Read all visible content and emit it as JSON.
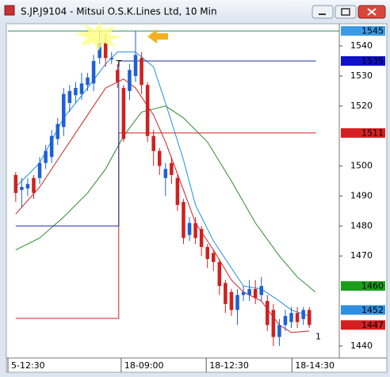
{
  "window": {
    "title": "S.JP.J9104 - Mitsui O.S.K.Lines Ltd, 10 Min"
  },
  "chart_data": {
    "type": "candlestick",
    "up_color": "#1f5fd6",
    "down_color": "#d02020",
    "open": [
      1497,
      1492,
      1492.5,
      1496,
      1496,
      1501,
      1503,
      1509,
      1513,
      1521,
      1523.6,
      1524,
      1527,
      1527.5,
      1536,
      1541,
      1535.5,
      1532,
      1526,
      1525,
      1530,
      1536,
      1527,
      1510,
      1505,
      1496,
      1501,
      1496,
      1488,
      1477,
      1481,
      1479,
      1473,
      1471,
      1468,
      1461,
      1458,
      1452,
      1457,
      1457,
      1459,
      1457,
      1455,
      1452,
      1443,
      1447,
      1448,
      1451,
      1449,
      1452
    ],
    "high": [
      1498,
      1496,
      1496,
      1497,
      1503,
      1507,
      1512,
      1516,
      1526,
      1527,
      1528,
      1531,
      1531,
      1537,
      1545,
      1544,
      1538,
      1534,
      1527,
      1534,
      1545,
      1538,
      1528,
      1512,
      1506,
      1501,
      1503,
      1497,
      1489,
      1483,
      1483,
      1480,
      1474,
      1472,
      1469,
      1462,
      1459,
      1459,
      1460,
      1462,
      1462,
      1463,
      1457,
      1454,
      1449,
      1452,
      1453,
      1453,
      1453,
      1453
    ],
    "low": [
      1488,
      1486,
      1490,
      1489,
      1494,
      1499,
      1501,
      1507,
      1510,
      1518,
      1521,
      1522,
      1525,
      1525,
      1534,
      1533,
      1534,
      1526,
      1508,
      1522,
      1528,
      1524,
      1508,
      1500,
      1497,
      1490,
      1494,
      1485,
      1474,
      1475,
      1474,
      1470,
      1466,
      1465,
      1457,
      1451,
      1450,
      1447,
      1455,
      1455,
      1454,
      1455,
      1445,
      1440,
      1440,
      1445,
      1446,
      1446,
      1447,
      1446
    ],
    "close": [
      1491,
      1493,
      1494,
      1491,
      1501,
      1505,
      1510,
      1514,
      1524,
      1525,
      1526,
      1527.5,
      1529.5,
      1535,
      1541,
      1536,
      1536,
      1528,
      1509,
      1532,
      1537,
      1527,
      1510,
      1505,
      1500,
      1499,
      1497,
      1487,
      1476,
      1481,
      1476,
      1473,
      1469,
      1468,
      1460,
      1454,
      1452,
      1457,
      1458,
      1459,
      1456,
      1460,
      1447,
      1443,
      1447,
      1450,
      1451,
      1448,
      1452,
      1447
    ],
    "xlim": [
      -1.3,
      54
    ],
    "xticks": [
      {
        "value": -1.3,
        "label": "5-12:30"
      },
      {
        "value": 17.6,
        "label": "18-09:00"
      },
      {
        "value": 31.8,
        "label": "18-12:30"
      },
      {
        "value": 46.1,
        "label": "18-14:30"
      }
    ],
    "ylim": [
      1436,
      1547.4
    ],
    "yticks": [
      1440,
      1470,
      1480,
      1490,
      1500,
      1520,
      1530,
      1540
    ],
    "series": [
      {
        "color": "#1e8fe0",
        "x": [
          0,
          4,
          8,
          12,
          15,
          17,
          20,
          23,
          25,
          28,
          30,
          33,
          36,
          38,
          41,
          44,
          46,
          49
        ],
        "values": [
          1493,
          1501,
          1516,
          1526,
          1534,
          1538,
          1538,
          1533,
          1521,
          1502,
          1487,
          1475,
          1466,
          1460,
          1459,
          1455,
          1452,
          1450
        ]
      },
      {
        "color": "#d02020",
        "x": [
          0,
          4,
          8,
          12,
          15,
          18,
          20,
          23,
          25,
          28,
          30,
          33,
          36,
          38,
          41,
          44,
          46,
          49
        ],
        "values": [
          1484,
          1493,
          1505,
          1517,
          1526,
          1529,
          1526,
          1517,
          1508,
          1492,
          1481,
          1472,
          1462,
          1458,
          1455,
          1447,
          1444.5,
          1445
        ]
      },
      {
        "color": "#2e8b2e",
        "x": [
          0,
          4,
          8,
          12,
          15,
          18,
          21,
          25,
          28,
          32,
          36,
          40,
          44,
          47,
          50
        ],
        "values": [
          1472,
          1476,
          1483,
          1491,
          1499,
          1510,
          1518,
          1520,
          1516,
          1508,
          1495,
          1481,
          1470,
          1463,
          1458
        ]
      },
      {
        "color": "#d02020",
        "x": [
          0,
          17.2,
          17.2,
          50.1
        ],
        "values": [
          1449.2,
          1449.2,
          1511,
          1511
        ]
      },
      {
        "color": "#1a2fa0",
        "x": [
          0,
          17.2,
          17.2,
          50.1
        ],
        "values": [
          1480,
          1480,
          1535,
          1535
        ]
      }
    ],
    "levels": [
      {
        "value": 1545,
        "color": "#2e8b57"
      }
    ],
    "price_tags": [
      {
        "value": 1545,
        "color": "#3a9be6"
      },
      {
        "value": 1535,
        "color": "#1010c8"
      },
      {
        "value": 1511,
        "color": "#d42020"
      },
      {
        "value": 1460,
        "color": "#1a9e1a"
      },
      {
        "value": 1452,
        "color": "#2f8fe0"
      },
      {
        "value": 1447,
        "color": "#d42020"
      }
    ],
    "annotations": [
      {
        "text": "T",
        "x": 17.2,
        "y": 1534
      },
      {
        "text": "1",
        "x": 50.5,
        "y": 1443
      }
    ]
  }
}
